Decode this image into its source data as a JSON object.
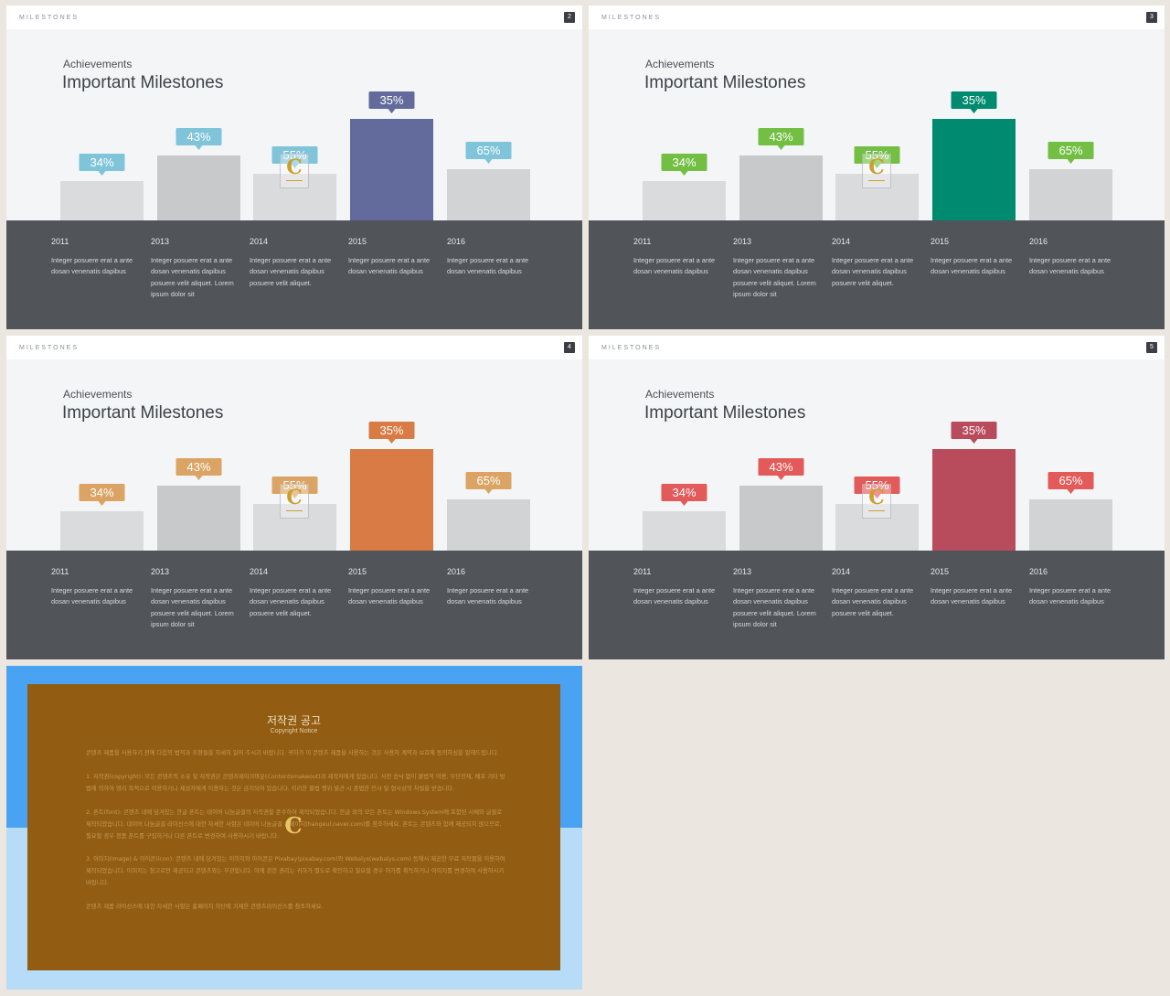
{
  "slides": [
    {
      "tag": "MILESTONES",
      "number": "2",
      "kicker": "Achievements",
      "title": "Important Milestones",
      "accent": "#636b9c",
      "label_color": "#7fc4d9"
    },
    {
      "tag": "MILESTONES",
      "number": "3",
      "kicker": "Achievements",
      "title": "Important Milestones",
      "accent": "#008a70",
      "label_color": "#72bf44"
    },
    {
      "tag": "MILESTONES",
      "number": "4",
      "kicker": "Achievements",
      "title": "Important Milestones",
      "accent": "#d97b45",
      "label_color": "#dba464"
    },
    {
      "tag": "MILESTONES",
      "number": "5",
      "kicker": "Achievements",
      "title": "Important Milestones",
      "accent": "#b84b5c",
      "label_color": "#e25a59"
    }
  ],
  "chart_data": {
    "type": "bar",
    "categories": [
      "2011",
      "2013",
      "2014",
      "2015",
      "2016"
    ],
    "values": [
      34,
      43,
      55,
      35,
      65
    ],
    "value_labels": [
      "34%",
      "43%",
      "55%",
      "35%",
      "65%"
    ],
    "highlight_index": 3,
    "bar_colors": [
      "#dadbdd",
      "#c7c9ca",
      "#dadbdd",
      "accent",
      "#d2d3d5"
    ],
    "descriptions": [
      "Integer posuere erat a ante dosan venenatis dapibus",
      "Integer posuere erat a ante dosan venenatis dapibus posuere velit aliquet. Lorem ipsum dolor sit",
      "Integer posuere erat a ante dosan venenatis dapibus posuere velit aliquet.",
      "Integer posuere erat a ante dosan venenatis dapibus",
      "Integer posuere erat a ante dosan venenatis dapibus"
    ]
  },
  "notice": {
    "title": "저작권 공고",
    "subtitle": "Copyright Notice",
    "watermark_glyph": "C",
    "paragraphs": [
      "콘텐츠 제품을 사용하기 전에 다음의 법적과 조항들을 자세히 읽어 주시기 바랍니다. 귀하가 이 콘텐츠 제품을 사용하는 것은 사용자 계약과 보호에 동의하심을 말해드립니다.",
      "1. 저작권(copyright): 모든 콘텐츠의 소유 및 저작권은 콘텐츠메이크마운(Contentsmakeout)과 제작자에게 있습니다. 사전 승낙 없이 불법적 이용, 무단전재, 배포 기타 방법에 의하여 영리 목적으로 이용하거나 제삼자에게 이용하는 것은 금지되어 있습니다. 이러한 불법 행위 발견 시 준법한 민사 및 형사상의 처벌을 받습니다.",
      "2. 폰트(font): 콘텐츠 내에 담겨있는 한글 폰트는 네이버 나눔글꼴의 저작권을 준수하여 제작되었습니다. 한글 외의 모든 폰트는 Windows System에 포함된 서체와 글꼴로 제작되었습니다. 네이버 나눔글꼴 라이선스에 대한 자세한 사항은 네이버 나눔글꼴 홈페이지(hangeul.naver.com)를 참조하세요. 폰트는 콘텐츠와 함께 제공되지 않으므로, 필요할 경우 정품 폰트를 구입하거나 다른 폰트로 변경하여 사용하시기 바랍니다.",
      "3. 이미지(image) & 아이콘(icon): 콘텐츠 내에 담겨있는 이미지와 아이콘은 Pixabay(pixabay.com)와 Webalys(webalys.com) 등에서 제공한 무료 저작물을 이용하여 제작되었습니다. 이미지는 참고로만 제공되고 콘텐츠와는 무관합니다. 이에 관한 권리는 귀하가 별도로 확인하고 필요할 경우 허가를 취득하거나 이미지를 변경하여 사용하시기 바랍니다.",
      "콘텐츠 제품 라이선스에 대한 자세한 사항은 홈페이지 하단에 기재한 콘텐츠라이선스를 참조하세요."
    ]
  }
}
